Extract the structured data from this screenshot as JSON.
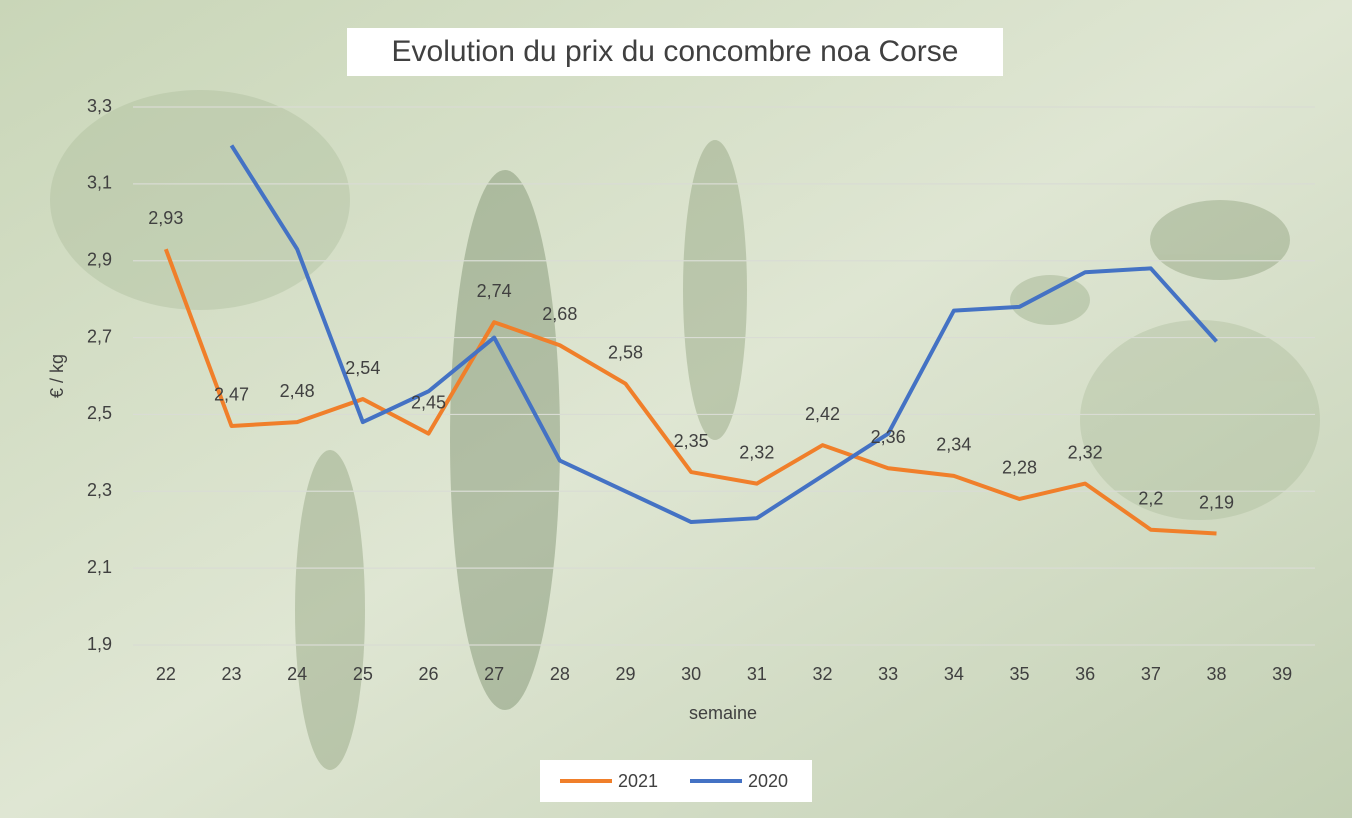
{
  "chart_data": {
    "type": "line",
    "title": "Evolution du prix du concombre noa Corse",
    "x_label": "semaine",
    "y_label": "€ / kg",
    "categories": [
      "22",
      "23",
      "24",
      "25",
      "26",
      "27",
      "28",
      "29",
      "30",
      "31",
      "32",
      "33",
      "34",
      "35",
      "36",
      "37",
      "38",
      "39"
    ],
    "series": [
      {
        "name": "2021",
        "color": "#f07f2a",
        "values": [
          2.93,
          2.47,
          2.48,
          2.54,
          2.45,
          2.74,
          2.68,
          2.58,
          2.35,
          2.32,
          2.42,
          2.36,
          2.34,
          2.28,
          2.32,
          2.2,
          2.19,
          null
        ],
        "value_labels": [
          "2,93",
          "2,47",
          "2,48",
          "2,54",
          "2,45",
          "2,74",
          "2,68",
          "2,58",
          "2,35",
          "2,32",
          "2,42",
          "2,36",
          "2,34",
          "2,28",
          "2,32",
          "2,2",
          "2,19",
          null
        ]
      },
      {
        "name": "2020",
        "color": "#4472c4",
        "values": [
          null,
          3.2,
          2.93,
          2.48,
          2.56,
          2.7,
          2.38,
          2.3,
          2.22,
          2.23,
          2.34,
          2.45,
          2.77,
          2.78,
          2.87,
          2.88,
          2.69,
          null
        ]
      }
    ],
    "ylim": [
      1.9,
      3.3
    ],
    "yticks": [
      {
        "value": 1.9,
        "label": "1,9"
      },
      {
        "value": 2.1,
        "label": "2,1"
      },
      {
        "value": 2.3,
        "label": "2,3"
      },
      {
        "value": 2.5,
        "label": "2,5"
      },
      {
        "value": 2.7,
        "label": "2,7"
      },
      {
        "value": 2.9,
        "label": "2,9"
      },
      {
        "value": 3.1,
        "label": "3,1"
      },
      {
        "value": 3.3,
        "label": "3,3"
      }
    ],
    "grid": true,
    "legend": "bottom"
  }
}
